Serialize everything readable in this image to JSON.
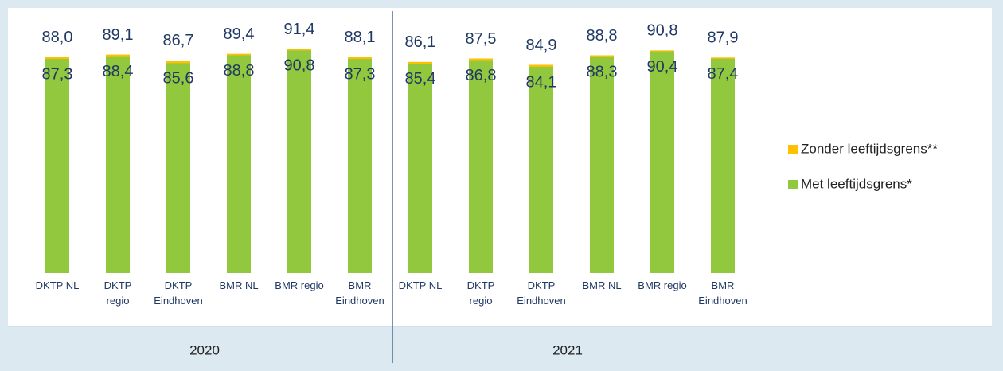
{
  "chart_data": {
    "type": "bar",
    "categories": [
      "DKTP NL",
      "DKTP\nregio",
      "DKTP\nEindhoven",
      "BMR NL",
      "BMR regio",
      "BMR\nEindhoven",
      "DKTP NL",
      "DKTP\nregio",
      "DKTP\nEindhoven",
      "BMR NL",
      "BMR regio",
      "BMR\nEindhoven"
    ],
    "groups": [
      "2020",
      "2021"
    ],
    "ylim": [
      0,
      100
    ],
    "series": [
      {
        "name": "Zonder leeftijdsgrens**",
        "color": "#ffc000",
        "values": [
          88.0,
          89.1,
          86.7,
          89.4,
          91.4,
          88.1,
          86.1,
          87.5,
          84.9,
          88.8,
          90.8,
          87.9
        ],
        "value_labels": [
          "88,0",
          "89,1",
          "86,7",
          "89,4",
          "91,4",
          "88,1",
          "86,1",
          "87,5",
          "84,9",
          "88,8",
          "90,8",
          "87,9"
        ]
      },
      {
        "name": "Met leeftijdsgrens*",
        "color": "#92c83e",
        "values": [
          87.3,
          88.4,
          85.6,
          88.8,
          90.8,
          87.3,
          85.4,
          86.8,
          84.1,
          88.3,
          90.4,
          87.4
        ],
        "value_labels": [
          "87,3",
          "88,4",
          "85,6",
          "88,8",
          "90,8",
          "87,3",
          "85,4",
          "86,8",
          "84,1",
          "88,3",
          "90,4",
          "87,4"
        ]
      }
    ]
  }
}
